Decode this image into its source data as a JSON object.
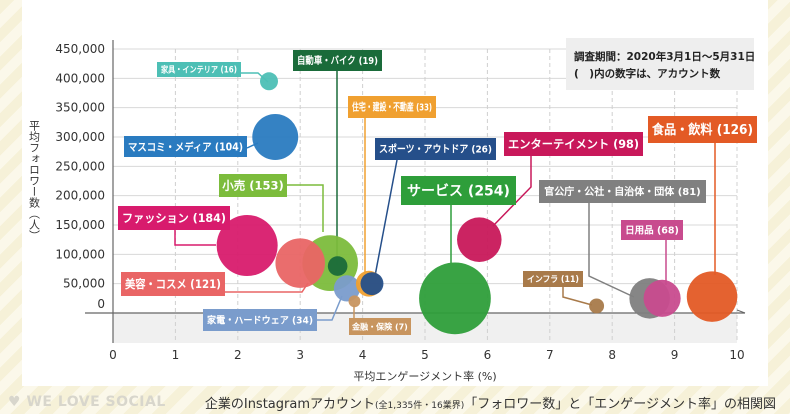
{
  "chart_data": {
    "type": "bubble",
    "title": "企業のInstagramアカウント「フォロワー数」と「エンゲージメント率」の相関図",
    "xlabel": "平均エンゲージメント率 (%)",
    "ylabel": "平均フォロワー数（人）",
    "xlim": [
      0,
      10
    ],
    "ylim": [
      0,
      450000
    ],
    "x_ticks": [
      "0",
      "1",
      "2",
      "3",
      "4",
      "5",
      "6",
      "7",
      "8",
      "9",
      "10"
    ],
    "y_ticks": [
      "0",
      "50,000",
      "100,000",
      "150,000",
      "200,000",
      "250,000",
      "300,000",
      "350,000",
      "400,000",
      "450,000"
    ],
    "note_lines": [
      "調査期間：2020年3月1日〜5月31日",
      "(　)内の数字は、アカウント数"
    ],
    "bubble_size": "accounts",
    "series": [
      {
        "label": "家具・インテリア (16)",
        "industry": "家具・インテリア",
        "accounts": 16,
        "x": 2.5,
        "y": 395000,
        "color": "#4dbfb5"
      },
      {
        "label": "マスコミ・メディア (104)",
        "industry": "マスコミ・メディア",
        "accounts": 104,
        "x": 2.6,
        "y": 300000,
        "color": "#2a7bc0"
      },
      {
        "label": "ファッション (184)",
        "industry": "ファッション",
        "accounts": 184,
        "x": 2.15,
        "y": 115000,
        "color": "#d81b6d"
      },
      {
        "label": "美容・コスメ (121)",
        "industry": "美容・コスメ",
        "accounts": 121,
        "x": 3.0,
        "y": 85000,
        "color": "#e96565"
      },
      {
        "label": "小売 (153)",
        "industry": "小売",
        "accounts": 153,
        "x": 3.48,
        "y": 85000,
        "color": "#7cbc3c"
      },
      {
        "label": "自動車・バイク (19)",
        "industry": "自動車・バイク",
        "accounts": 19,
        "x": 3.6,
        "y": 80000,
        "color": "#1a6b3a"
      },
      {
        "label": "家電・ハードウェア (34)",
        "industry": "家電・ハードウェア",
        "accounts": 34,
        "x": 3.75,
        "y": 42000,
        "color": "#7a9ccc"
      },
      {
        "label": "金融・保険 (7)",
        "industry": "金融・保険",
        "accounts": 7,
        "x": 3.87,
        "y": 20000,
        "color": "#c8955f"
      },
      {
        "label": "住宅・建設・不動産 (33)",
        "industry": "住宅・建設・不動産",
        "accounts": 33,
        "x": 4.1,
        "y": 50000,
        "color": "#f0a030"
      },
      {
        "label": "スポーツ・アウトドア (26)",
        "industry": "スポーツ・アウトドア",
        "accounts": 26,
        "x": 4.15,
        "y": 50000,
        "color": "#254f8a"
      },
      {
        "label": "サービス (254)",
        "industry": "サービス",
        "accounts": 254,
        "x": 5.48,
        "y": 25000,
        "color": "#2e9e3a"
      },
      {
        "label": "エンターテイメント (98)",
        "industry": "エンターテイメント",
        "accounts": 98,
        "x": 5.87,
        "y": 125000,
        "color": "#c8185a"
      },
      {
        "label": "インフラ (11)",
        "industry": "インフラ",
        "accounts": 11,
        "x": 7.75,
        "y": 12000,
        "color": "#a87a4a"
      },
      {
        "label": "官公庁・公社・自治体・団体 (81)",
        "industry": "官公庁・公社・自治体・団体",
        "accounts": 81,
        "x": 8.6,
        "y": 25000,
        "color": "#808080"
      },
      {
        "label": "日用品 (68)",
        "industry": "日用品",
        "accounts": 68,
        "x": 8.8,
        "y": 25000,
        "color": "#c84b8e"
      },
      {
        "label": "食品・飲料 (126)",
        "industry": "食品・飲料",
        "accounts": 126,
        "x": 9.6,
        "y": 28000,
        "color": "#e35a25"
      }
    ]
  },
  "footer": {
    "logo": "WE LOVE SOCIAL",
    "caption_main": "企業のInstagramアカウント",
    "caption_small": "(全1,335件・16業界)",
    "caption_rest": "「フォロワー数」と「エンゲージメント率」の相関図"
  }
}
